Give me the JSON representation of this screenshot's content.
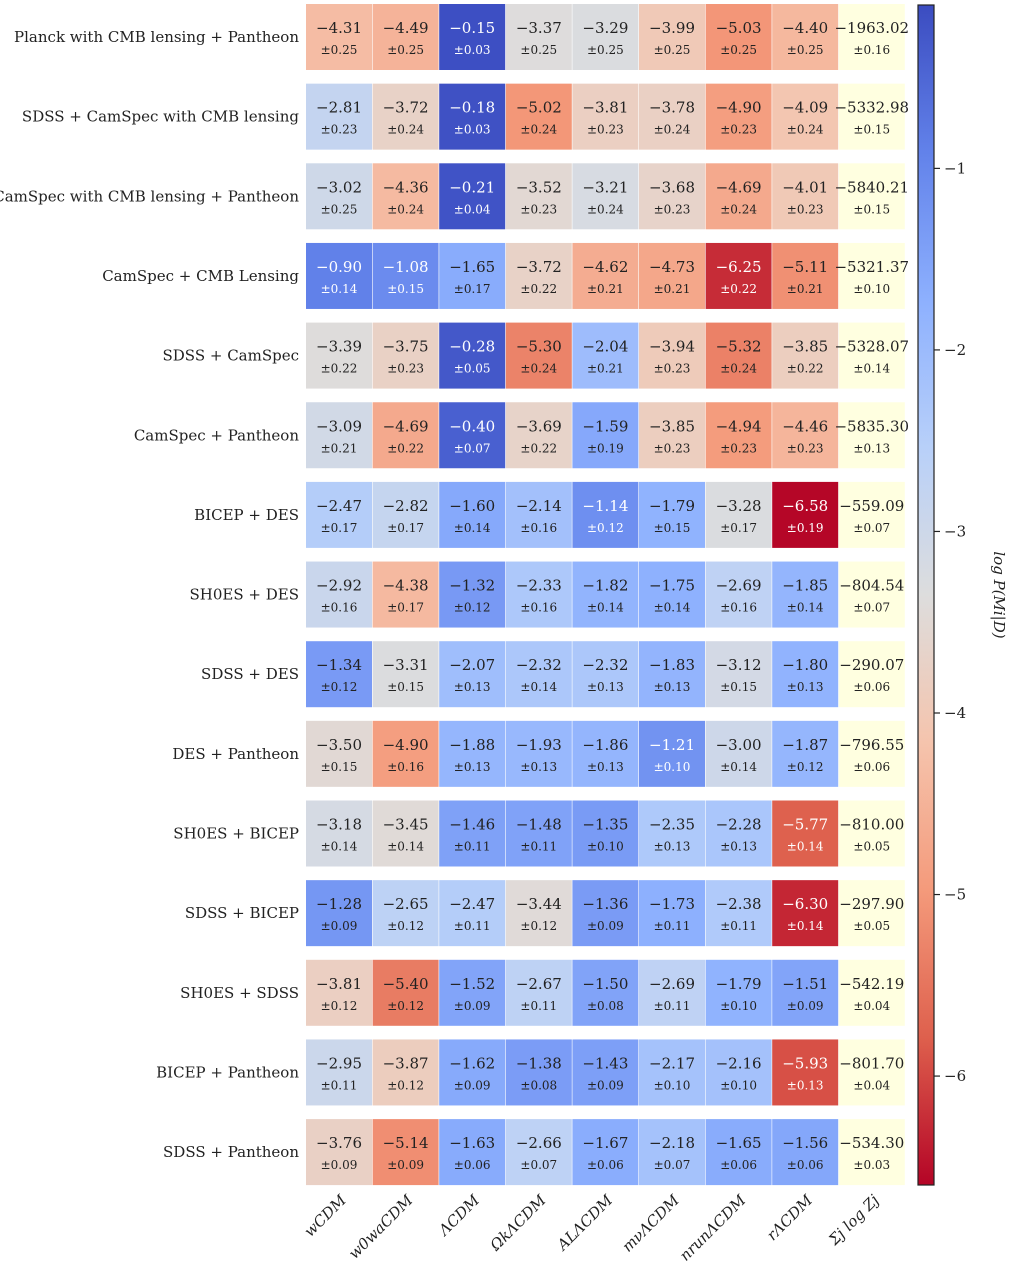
{
  "chart_data": {
    "type": "heatmap",
    "row_labels": [
      "Planck with CMB lensing + Pantheon",
      "SDSS + CamSpec with CMB lensing",
      "CamSpec with CMB lensing + Pantheon",
      "CamSpec + CMB Lensing",
      "SDSS + CamSpec",
      "CamSpec + Pantheon",
      "BICEP + DES",
      "SH0ES + DES",
      "SDSS + DES",
      "DES + Pantheon",
      "SH0ES + BICEP",
      "SDSS + BICEP",
      "SH0ES + SDSS",
      "BICEP + Pantheon",
      "SDSS + Pantheon"
    ],
    "col_labels": [
      "wCDM",
      "w0waCDM",
      "ΛCDM",
      "ΩkΛCDM",
      "ALΛCDM",
      "mνΛCDM",
      "nrunΛCDM",
      "rΛCDM",
      "Σj log Zj"
    ],
    "values": [
      [
        "−4.31",
        "−4.49",
        "−0.15",
        "−3.37",
        "−3.29",
        "−3.99",
        "−5.03",
        "−4.40",
        "−1963.02"
      ],
      [
        "−2.81",
        "−3.72",
        "−0.18",
        "−5.02",
        "−3.81",
        "−3.78",
        "−4.90",
        "−4.09",
        "−5332.98"
      ],
      [
        "−3.02",
        "−4.36",
        "−0.21",
        "−3.52",
        "−3.21",
        "−3.68",
        "−4.69",
        "−4.01",
        "−5840.21"
      ],
      [
        "−0.90",
        "−1.08",
        "−1.65",
        "−3.72",
        "−4.62",
        "−4.73",
        "−6.25",
        "−5.11",
        "−5321.37"
      ],
      [
        "−3.39",
        "−3.75",
        "−0.28",
        "−5.30",
        "−2.04",
        "−3.94",
        "−5.32",
        "−3.85",
        "−5328.07"
      ],
      [
        "−3.09",
        "−4.69",
        "−0.40",
        "−3.69",
        "−1.59",
        "−3.85",
        "−4.94",
        "−4.46",
        "−5835.30"
      ],
      [
        "−2.47",
        "−2.82",
        "−1.60",
        "−2.14",
        "−1.14",
        "−1.79",
        "−3.28",
        "−6.58",
        "−559.09"
      ],
      [
        "−2.92",
        "−4.38",
        "−1.32",
        "−2.33",
        "−1.82",
        "−1.75",
        "−2.69",
        "−1.85",
        "−804.54"
      ],
      [
        "−1.34",
        "−3.31",
        "−2.07",
        "−2.32",
        "−2.32",
        "−1.83",
        "−3.12",
        "−1.80",
        "−290.07"
      ],
      [
        "−3.50",
        "−4.90",
        "−1.88",
        "−1.93",
        "−1.86",
        "−1.21",
        "−3.00",
        "−1.87",
        "−796.55"
      ],
      [
        "−3.18",
        "−3.45",
        "−1.46",
        "−1.48",
        "−1.35",
        "−2.35",
        "−2.28",
        "−5.77",
        "−810.00"
      ],
      [
        "−1.28",
        "−2.65",
        "−2.47",
        "−3.44",
        "−1.36",
        "−1.73",
        "−2.38",
        "−6.30",
        "−297.90"
      ],
      [
        "−3.81",
        "−5.40",
        "−1.52",
        "−2.67",
        "−1.50",
        "−2.69",
        "−1.79",
        "−1.51",
        "−542.19"
      ],
      [
        "−2.95",
        "−3.87",
        "−1.62",
        "−1.38",
        "−1.43",
        "−2.17",
        "−2.16",
        "−5.93",
        "−801.70"
      ],
      [
        "−3.76",
        "−5.14",
        "−1.63",
        "−2.66",
        "−1.67",
        "−2.18",
        "−1.65",
        "−1.56",
        "−534.30"
      ]
    ],
    "errors": [
      [
        "±0.25",
        "±0.25",
        "±0.03",
        "±0.25",
        "±0.25",
        "±0.25",
        "±0.25",
        "±0.25",
        "±0.16"
      ],
      [
        "±0.23",
        "±0.24",
        "±0.03",
        "±0.24",
        "±0.23",
        "±0.24",
        "±0.23",
        "±0.24",
        "±0.15"
      ],
      [
        "±0.25",
        "±0.24",
        "±0.04",
        "±0.23",
        "±0.24",
        "±0.23",
        "±0.24",
        "±0.23",
        "±0.15"
      ],
      [
        "±0.14",
        "±0.15",
        "±0.17",
        "±0.22",
        "±0.21",
        "±0.21",
        "±0.22",
        "±0.21",
        "±0.10"
      ],
      [
        "±0.22",
        "±0.23",
        "±0.05",
        "±0.24",
        "±0.21",
        "±0.23",
        "±0.24",
        "±0.22",
        "±0.14"
      ],
      [
        "±0.21",
        "±0.22",
        "±0.07",
        "±0.22",
        "±0.19",
        "±0.23",
        "±0.23",
        "±0.23",
        "±0.13"
      ],
      [
        "±0.17",
        "±0.17",
        "±0.14",
        "±0.16",
        "±0.12",
        "±0.15",
        "±0.17",
        "±0.19",
        "±0.07"
      ],
      [
        "±0.16",
        "±0.17",
        "±0.12",
        "±0.16",
        "±0.14",
        "±0.14",
        "±0.16",
        "±0.14",
        "±0.07"
      ],
      [
        "±0.12",
        "±0.15",
        "±0.13",
        "±0.14",
        "±0.13",
        "±0.13",
        "±0.15",
        "±0.13",
        "±0.06"
      ],
      [
        "±0.15",
        "±0.16",
        "±0.13",
        "±0.13",
        "±0.13",
        "±0.10",
        "±0.14",
        "±0.12",
        "±0.06"
      ],
      [
        "±0.14",
        "±0.14",
        "±0.11",
        "±0.11",
        "±0.10",
        "±0.13",
        "±0.13",
        "±0.14",
        "±0.05"
      ],
      [
        "±0.09",
        "±0.12",
        "±0.11",
        "±0.12",
        "±0.09",
        "±0.11",
        "±0.11",
        "±0.14",
        "±0.05"
      ],
      [
        "±0.12",
        "±0.12",
        "±0.09",
        "±0.11",
        "±0.08",
        "±0.11",
        "±0.10",
        "±0.09",
        "±0.04"
      ],
      [
        "±0.11",
        "±0.12",
        "±0.09",
        "±0.08",
        "±0.09",
        "±0.10",
        "±0.10",
        "±0.13",
        "±0.04"
      ],
      [
        "±0.09",
        "±0.09",
        "±0.06",
        "±0.07",
        "±0.06",
        "±0.07",
        "±0.06",
        "±0.06",
        "±0.03"
      ]
    ],
    "colorbar": {
      "label": "log P(Mi|D)",
      "range": [
        -6.6,
        -0.1
      ],
      "ticks": [
        -1,
        -2,
        -3,
        -4,
        -5,
        -6
      ],
      "tick_labels": [
        "−1",
        "−2",
        "−3",
        "−4",
        "−5",
        "−6"
      ],
      "colormap": "coolwarm",
      "position": "right"
    },
    "evidence_column_color": "#ffffe0",
    "grid": false
  }
}
